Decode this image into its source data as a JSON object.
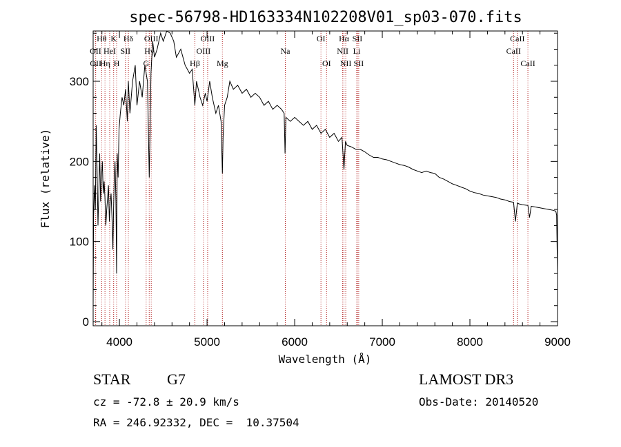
{
  "chart_data": {
    "type": "line",
    "title": "spec-56798-HD163334N102208V01_sp03-070.fits",
    "xlabel": "Wavelength (Å)",
    "ylabel": "Flux (relative)",
    "xlim": [
      3700,
      9000
    ],
    "ylim": [
      0,
      375
    ],
    "x_ticks": [
      4000,
      5000,
      6000,
      7000,
      8000,
      9000
    ],
    "x_tick_labels": [
      "4000",
      "5000",
      "6000",
      "7000",
      "8000",
      "9000"
    ],
    "y_ticks": [
      0,
      100,
      200,
      300
    ],
    "y_tick_labels": [
      "0",
      "100",
      "200",
      "300"
    ],
    "series": [
      {
        "name": "flux",
        "x": [
          3700,
          3705,
          3715,
          3725,
          3735,
          3745,
          3755,
          3765,
          3775,
          3785,
          3795,
          3805,
          3815,
          3825,
          3835,
          3845,
          3855,
          3865,
          3875,
          3885,
          3895,
          3905,
          3915,
          3925,
          3933,
          3940,
          3950,
          3960,
          3968,
          3975,
          3985,
          3995,
          4010,
          4030,
          4050,
          4070,
          4090,
          4102,
          4120,
          4150,
          4180,
          4200,
          4230,
          4260,
          4290,
          4320,
          4340,
          4360,
          4380,
          4400,
          4430,
          4470,
          4500,
          4540,
          4580,
          4620,
          4650,
          4700,
          4750,
          4800,
          4830,
          4861,
          4880,
          4900,
          4920,
          4950,
          4980,
          5000,
          5030,
          5060,
          5100,
          5130,
          5160,
          5175,
          5183,
          5200,
          5230,
          5260,
          5300,
          5350,
          5400,
          5450,
          5500,
          5550,
          5600,
          5650,
          5700,
          5750,
          5800,
          5850,
          5880,
          5890,
          5900,
          5950,
          6000,
          6050,
          6100,
          6150,
          6200,
          6250,
          6300,
          6350,
          6400,
          6450,
          6500,
          6540,
          6563,
          6580,
          6600,
          6650,
          6700,
          6750,
          6800,
          6850,
          6900,
          6950,
          7000,
          7050,
          7100,
          7150,
          7200,
          7250,
          7300,
          7350,
          7400,
          7450,
          7500,
          7550,
          7600,
          7650,
          7700,
          7750,
          7800,
          7850,
          7900,
          7950,
          8000,
          8050,
          8100,
          8150,
          8200,
          8250,
          8300,
          8350,
          8400,
          8450,
          8498,
          8520,
          8542,
          8560,
          8600,
          8662,
          8680,
          8700,
          8750,
          8800,
          8850,
          8900,
          8950,
          8980,
          8990,
          9000
        ],
        "values": [
          20,
          130,
          170,
          140,
          245,
          190,
          120,
          165,
          210,
          150,
          180,
          200,
          160,
          175,
          155,
          120,
          140,
          155,
          170,
          125,
          150,
          160,
          130,
          90,
          140,
          175,
          200,
          150,
          60,
          210,
          180,
          240,
          260,
          280,
          270,
          290,
          250,
          300,
          260,
          300,
          320,
          270,
          300,
          280,
          320,
          300,
          180,
          310,
          350,
          330,
          340,
          360,
          350,
          370,
          360,
          350,
          330,
          340,
          320,
          310,
          315,
          270,
          300,
          290,
          280,
          270,
          285,
          275,
          300,
          280,
          260,
          270,
          250,
          185,
          230,
          270,
          280,
          300,
          290,
          295,
          285,
          290,
          280,
          285,
          280,
          270,
          275,
          265,
          270,
          265,
          260,
          210,
          255,
          250,
          255,
          250,
          245,
          250,
          240,
          245,
          235,
          240,
          230,
          235,
          225,
          230,
          190,
          225,
          220,
          218,
          215,
          215,
          212,
          208,
          205,
          205,
          203,
          202,
          200,
          198,
          196,
          195,
          193,
          190,
          188,
          186,
          188,
          186,
          185,
          180,
          178,
          175,
          172,
          170,
          168,
          166,
          163,
          161,
          160,
          158,
          157,
          156,
          155,
          153,
          152,
          150,
          149,
          125,
          148,
          147,
          146,
          145,
          130,
          144,
          143,
          142,
          141,
          140,
          139,
          138,
          133,
          60
        ]
      }
    ],
    "spectral_lines": [
      {
        "name": "Hθ",
        "wavelength": 3797,
        "row": 0
      },
      {
        "name": "OII",
        "wavelength": 3727,
        "row": 1
      },
      {
        "name": "OII",
        "wavelength": 3729,
        "row": 2
      },
      {
        "name": "HeI",
        "wavelength": 3889,
        "row": 1
      },
      {
        "name": "Hη",
        "wavelength": 3835,
        "row": 2
      },
      {
        "name": "K",
        "wavelength": 3934,
        "row": 0
      },
      {
        "name": "H",
        "wavelength": 3968,
        "row": 2
      },
      {
        "name": "SII",
        "wavelength": 4069,
        "row": 1
      },
      {
        "name": "Hδ",
        "wavelength": 4102,
        "row": 0
      },
      {
        "name": "OIII",
        "wavelength": 4363,
        "row": 0
      },
      {
        "name": "Hγ",
        "wavelength": 4340,
        "row": 1
      },
      {
        "name": "G",
        "wavelength": 4305,
        "row": 2
      },
      {
        "name": "OIII",
        "wavelength": 5007,
        "row": 0
      },
      {
        "name": "OIII",
        "wavelength": 4959,
        "row": 1
      },
      {
        "name": "Hβ",
        "wavelength": 4861,
        "row": 2
      },
      {
        "name": "Mg",
        "wavelength": 5175,
        "row": 2
      },
      {
        "name": "Na",
        "wavelength": 5893,
        "row": 1
      },
      {
        "name": "OI",
        "wavelength": 6300,
        "row": 0
      },
      {
        "name": "OI",
        "wavelength": 6364,
        "row": 2
      },
      {
        "name": "Hα",
        "wavelength": 6563,
        "row": 0
      },
      {
        "name": "NII",
        "wavelength": 6548,
        "row": 1
      },
      {
        "name": "NII",
        "wavelength": 6583,
        "row": 2
      },
      {
        "name": "SII",
        "wavelength": 6716,
        "row": 0
      },
      {
        "name": "Li",
        "wavelength": 6708,
        "row": 1
      },
      {
        "name": "SII",
        "wavelength": 6731,
        "row": 2
      },
      {
        "name": "CaII",
        "wavelength": 8542,
        "row": 0
      },
      {
        "name": "CaII",
        "wavelength": 8498,
        "row": 1
      },
      {
        "name": "CaII",
        "wavelength": 8662,
        "row": 2
      }
    ]
  },
  "info": {
    "object_class": "STAR",
    "subclass": "G7",
    "redshift": "cz = -72.8 ± 20.9 km/s",
    "coords": "RA = 246.92332, DEC =  10.37504",
    "survey": "LAMOST DR3",
    "obs_date": "Obs-Date: 20140520"
  }
}
